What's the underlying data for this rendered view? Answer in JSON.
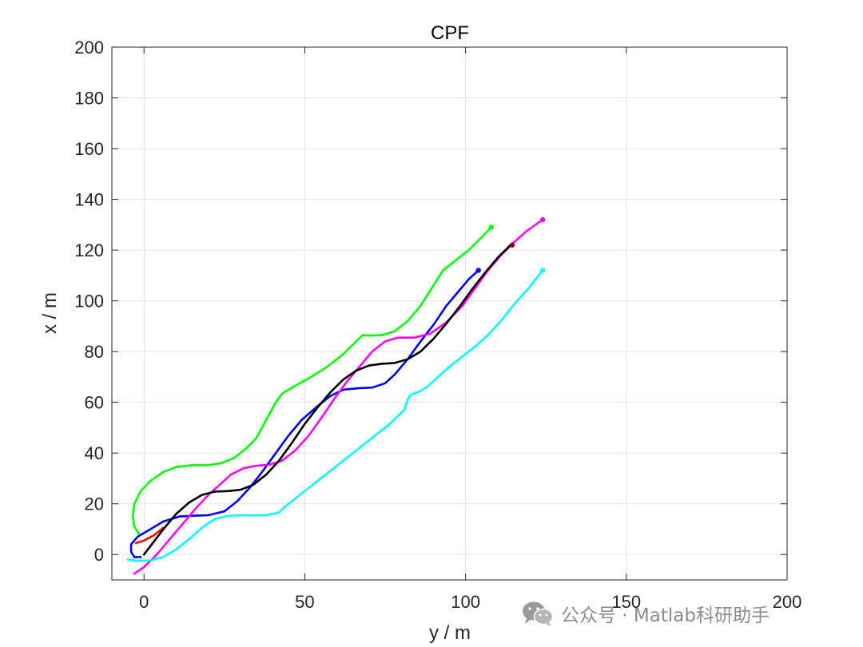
{
  "chart_data": {
    "type": "line",
    "title": "CPF",
    "xlabel": "y / m",
    "ylabel": "x / m",
    "xlim": [
      -10,
      200
    ],
    "ylim": [
      -10,
      200
    ],
    "xticks": [
      0,
      50,
      100,
      150,
      200
    ],
    "yticks": [
      0,
      20,
      40,
      60,
      80,
      100,
      120,
      140,
      160,
      180,
      200
    ],
    "grid": true,
    "legend": "none",
    "series": [
      {
        "color": "#00ff00",
        "points": [
          [
            -1.5,
            8
          ],
          [
            -3,
            11
          ],
          [
            -3.5,
            15
          ],
          [
            -3,
            20
          ],
          [
            -1,
            25
          ],
          [
            2,
            29
          ],
          [
            6,
            32.5
          ],
          [
            10,
            34.5
          ],
          [
            15,
            35.2
          ],
          [
            20,
            35.2
          ],
          [
            24,
            36
          ],
          [
            28,
            38
          ],
          [
            32,
            42
          ],
          [
            35,
            46
          ],
          [
            38,
            53
          ],
          [
            41,
            60
          ],
          [
            43,
            63.5
          ],
          [
            47,
            66.5
          ],
          [
            52,
            70
          ],
          [
            57,
            74
          ],
          [
            62,
            79
          ],
          [
            66,
            84
          ],
          [
            68,
            86.5
          ],
          [
            70,
            86.3
          ],
          [
            74,
            86.5
          ],
          [
            78,
            88
          ],
          [
            82,
            92
          ],
          [
            86,
            98
          ],
          [
            90,
            106
          ],
          [
            93,
            112
          ],
          [
            97,
            116
          ],
          [
            101,
            120
          ],
          [
            105,
            125
          ],
          [
            108,
            129
          ]
        ]
      },
      {
        "color": "#0000ff",
        "points": [
          [
            -1,
            -1
          ],
          [
            -3,
            -1
          ],
          [
            -4,
            1
          ],
          [
            -4,
            4
          ],
          [
            -2,
            7
          ],
          [
            2,
            10
          ],
          [
            6,
            13
          ],
          [
            11,
            15
          ],
          [
            16,
            15.3
          ],
          [
            20,
            15.5
          ],
          [
            25,
            17
          ],
          [
            29,
            21
          ],
          [
            33,
            26.5
          ],
          [
            37,
            33
          ],
          [
            41,
            40
          ],
          [
            45,
            47
          ],
          [
            49,
            53
          ],
          [
            54,
            58.5
          ],
          [
            58,
            62.5
          ],
          [
            62,
            65
          ],
          [
            67,
            65.6
          ],
          [
            71,
            65.8
          ],
          [
            75,
            67.5
          ],
          [
            78,
            71
          ],
          [
            82,
            77
          ],
          [
            86,
            84
          ],
          [
            90,
            90.5
          ],
          [
            94,
            98
          ],
          [
            98,
            104
          ],
          [
            101,
            108.5
          ],
          [
            104,
            112
          ]
        ]
      },
      {
        "color": "#ff00ff",
        "points": [
          [
            -3,
            -7.5
          ],
          [
            0,
            -5
          ],
          [
            4,
            0
          ],
          [
            8,
            6
          ],
          [
            12,
            12
          ],
          [
            16,
            18
          ],
          [
            20,
            23.5
          ],
          [
            24,
            28
          ],
          [
            27,
            31.5
          ],
          [
            31,
            34
          ],
          [
            35,
            35
          ],
          [
            39,
            35.4
          ],
          [
            43,
            37
          ],
          [
            47,
            41
          ],
          [
            51,
            46.5
          ],
          [
            55,
            53.5
          ],
          [
            59,
            61
          ],
          [
            63,
            68
          ],
          [
            67,
            74
          ],
          [
            71,
            80
          ],
          [
            75,
            84
          ],
          [
            79,
            85.5
          ],
          [
            84,
            85.5
          ],
          [
            89,
            87
          ],
          [
            94,
            91.5
          ],
          [
            99,
            98
          ],
          [
            103,
            105
          ],
          [
            107,
            112
          ],
          [
            111,
            118
          ],
          [
            115,
            123
          ],
          [
            119,
            127.5
          ],
          [
            124,
            132
          ]
        ]
      },
      {
        "color": "#00ffff",
        "points": [
          [
            -5,
            -2
          ],
          [
            -2,
            -2.5
          ],
          [
            2,
            -2.3
          ],
          [
            6,
            -1
          ],
          [
            10,
            2
          ],
          [
            14,
            6
          ],
          [
            18,
            10.5
          ],
          [
            22,
            14
          ],
          [
            26,
            15.2
          ],
          [
            30,
            15.5
          ],
          [
            34,
            15.4
          ],
          [
            38,
            15.5
          ],
          [
            42,
            16.5
          ],
          [
            44,
            19
          ],
          [
            47,
            22
          ],
          [
            52,
            27
          ],
          [
            58,
            33
          ],
          [
            64,
            39
          ],
          [
            70,
            45
          ],
          [
            76,
            51
          ],
          [
            81,
            57
          ],
          [
            82,
            61
          ],
          [
            83,
            63
          ],
          [
            86,
            64.5
          ],
          [
            88,
            66
          ],
          [
            91,
            69.5
          ],
          [
            95,
            74
          ],
          [
            99,
            78
          ],
          [
            103,
            82
          ],
          [
            107,
            86.5
          ],
          [
            111,
            92
          ],
          [
            115,
            98.5
          ],
          [
            119,
            104
          ],
          [
            124,
            112
          ]
        ]
      },
      {
        "color": "#ff0000",
        "points": [
          [
            -2.5,
            4.5
          ],
          [
            0,
            5.5
          ],
          [
            3,
            7.5
          ],
          [
            6,
            10.5
          ]
        ]
      },
      {
        "color": "#000000",
        "points": [
          [
            0,
            0
          ],
          [
            3,
            5
          ],
          [
            6,
            10
          ],
          [
            10,
            16
          ],
          [
            14,
            20.5
          ],
          [
            18,
            23.5
          ],
          [
            22,
            24.8
          ],
          [
            26,
            25
          ],
          [
            30,
            25.5
          ],
          [
            34,
            27.5
          ],
          [
            38,
            31.5
          ],
          [
            42,
            37
          ],
          [
            46,
            44
          ],
          [
            50,
            51.5
          ],
          [
            54,
            58
          ],
          [
            58,
            64
          ],
          [
            62,
            69
          ],
          [
            66,
            72.5
          ],
          [
            70,
            74.5
          ],
          [
            74,
            75.2
          ],
          [
            78,
            75.5
          ],
          [
            82,
            77
          ],
          [
            86,
            80
          ],
          [
            90,
            85
          ],
          [
            94,
            91
          ],
          [
            98,
            97.5
          ],
          [
            102,
            104.5
          ],
          [
            106,
            111
          ],
          [
            110,
            117
          ],
          [
            114,
            122
          ]
        ]
      }
    ],
    "endpoints": [
      {
        "x": 108,
        "y": 129,
        "color": "#00ff00"
      },
      {
        "x": 104,
        "y": 112,
        "color": "#0000ff"
      },
      {
        "x": 124,
        "y": 132,
        "color": "#ff00ff"
      },
      {
        "x": 124,
        "y": 112,
        "color": "#00ffff"
      },
      {
        "x": 114.5,
        "y": 122,
        "color": "#8b0000"
      }
    ]
  },
  "watermark": {
    "text": "公众号 · Matlab科研助手",
    "icon": "wechat-icon"
  }
}
